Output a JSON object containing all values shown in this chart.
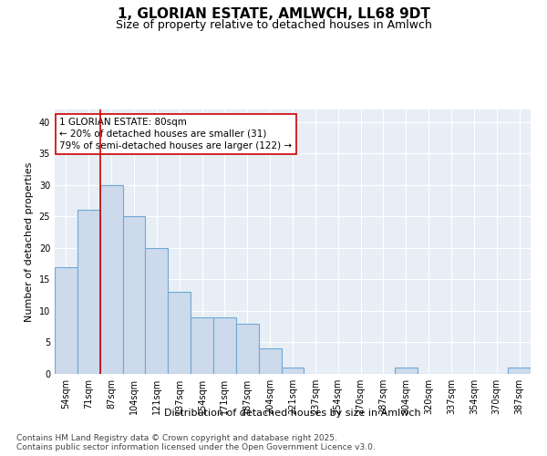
{
  "title": "1, GLORIAN ESTATE, AMLWCH, LL68 9DT",
  "subtitle": "Size of property relative to detached houses in Amlwch",
  "xlabel": "Distribution of detached houses by size in Amlwch",
  "ylabel": "Number of detached properties",
  "bar_color": "#ccdaec",
  "bar_edge_color": "#6fa8d4",
  "background_color": "#e8eef6",
  "categories": [
    "54sqm",
    "71sqm",
    "87sqm",
    "104sqm",
    "121sqm",
    "137sqm",
    "154sqm",
    "171sqm",
    "187sqm",
    "204sqm",
    "221sqm",
    "237sqm",
    "254sqm",
    "270sqm",
    "287sqm",
    "304sqm",
    "320sqm",
    "337sqm",
    "354sqm",
    "370sqm",
    "387sqm"
  ],
  "values": [
    17,
    26,
    30,
    25,
    20,
    13,
    9,
    9,
    8,
    4,
    1,
    0,
    0,
    0,
    0,
    1,
    0,
    0,
    0,
    0,
    1
  ],
  "ylim": [
    0,
    42
  ],
  "yticks": [
    0,
    5,
    10,
    15,
    20,
    25,
    30,
    35,
    40
  ],
  "vline_x": 1.53,
  "vline_color": "#cc0000",
  "annotation_line1": "1 GLORIAN ESTATE: 80sqm",
  "annotation_line2": "← 20% of detached houses are smaller (31)",
  "annotation_line3": "79% of semi-detached houses are larger (122) →",
  "footer1": "Contains HM Land Registry data © Crown copyright and database right 2025.",
  "footer2": "Contains public sector information licensed under the Open Government Licence v3.0.",
  "title_fontsize": 11,
  "subtitle_fontsize": 9,
  "axis_label_fontsize": 8,
  "tick_fontsize": 7,
  "annotation_fontsize": 7.5,
  "footer_fontsize": 6.5,
  "grid_color": "#ffffff",
  "fig_width": 6.0,
  "fig_height": 5.0
}
